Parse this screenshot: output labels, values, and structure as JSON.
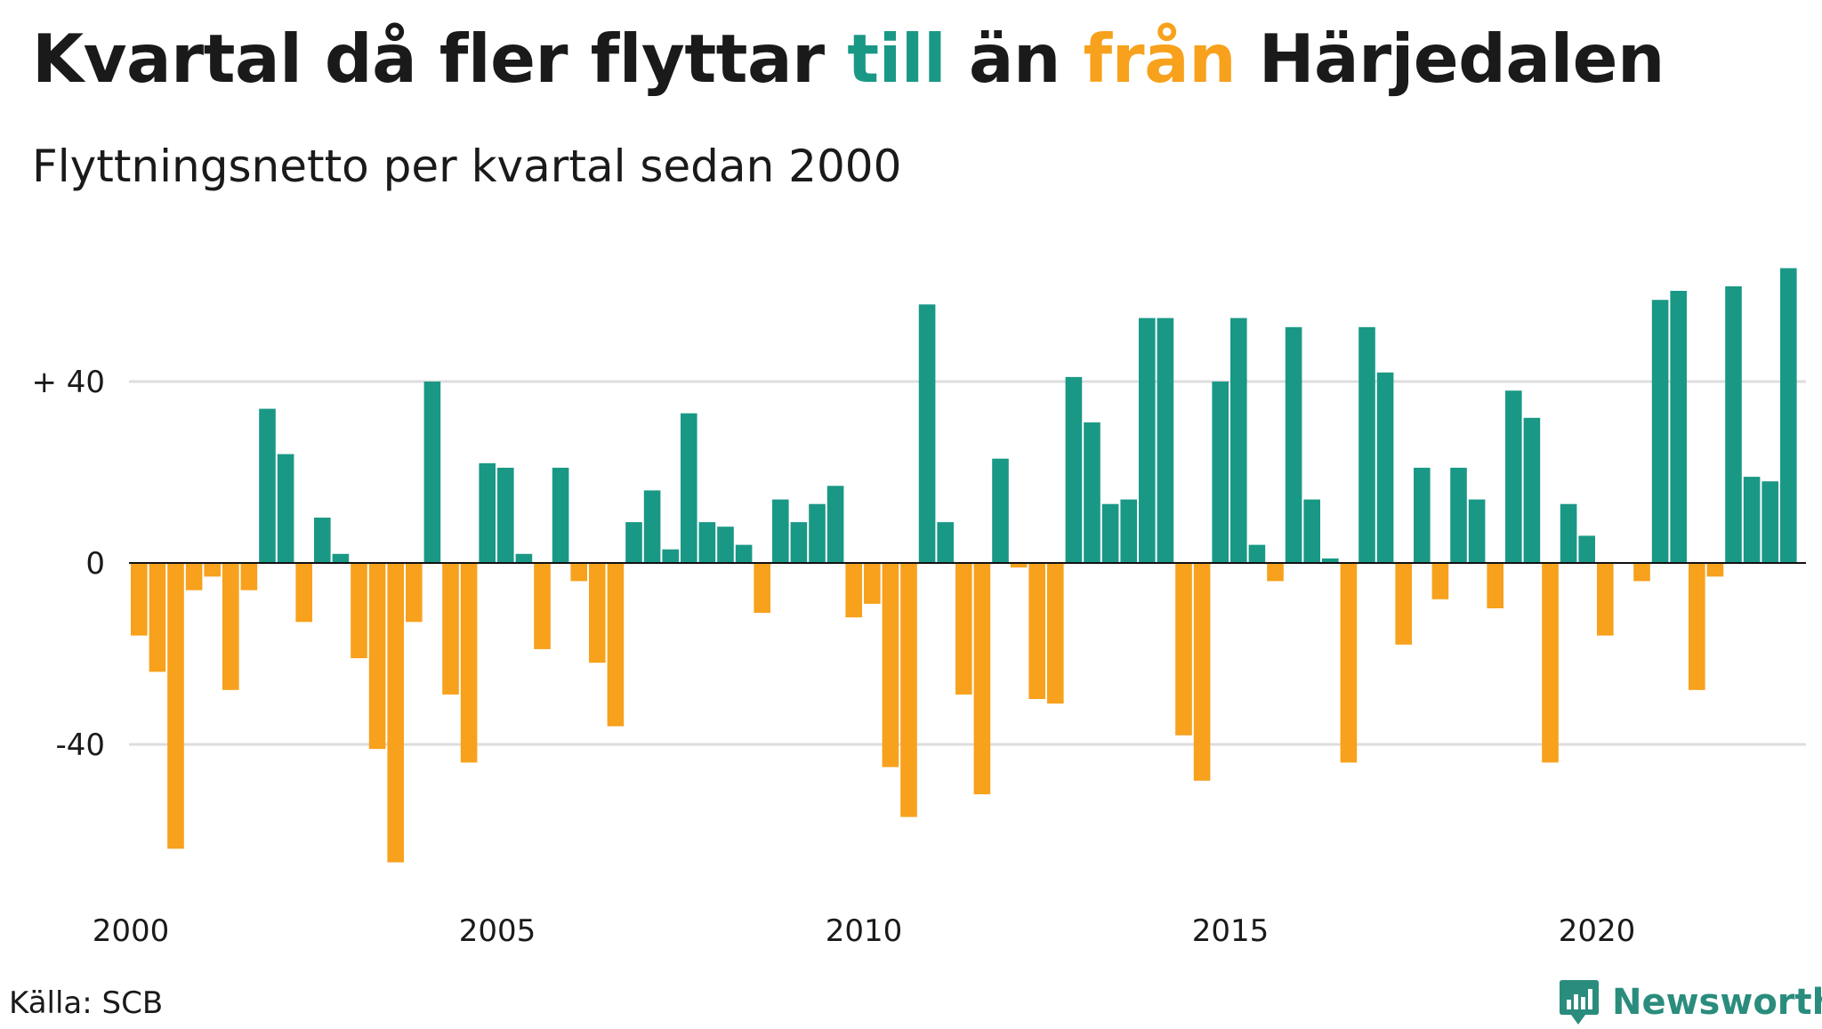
{
  "title": {
    "part1": "Kvartal då fler flyttar ",
    "part2": "till",
    "part3": " än ",
    "part4": "från",
    "part5": " Härjedalen"
  },
  "subtitle": "Flyttningsnetto per kvartal sedan 2000",
  "source": "Källa: SCB",
  "brand": "Newsworthy",
  "colors": {
    "positive": "#1a9886",
    "negative": "#f7a11c",
    "grid": "#dddddd",
    "text": "#1a1a1a"
  },
  "chart_data": {
    "type": "bar",
    "title": "Kvartal då fler flyttar till än från Härjedalen",
    "subtitle": "Flyttningsnetto per kvartal sedan 2000",
    "xlabel": "",
    "ylabel": "",
    "ylim": [
      -72,
      66
    ],
    "yticks": [
      {
        "value": 40,
        "label": "+ 40"
      },
      {
        "value": 0,
        "label": "0"
      },
      {
        "value": -40,
        "label": "-40"
      }
    ],
    "xticks": [
      {
        "index": 0,
        "label": "2000"
      },
      {
        "index": 20,
        "label": "2005"
      },
      {
        "index": 40,
        "label": "2010"
      },
      {
        "index": 60,
        "label": "2015"
      },
      {
        "index": 80,
        "label": "2020"
      }
    ],
    "start": "2000 Q1",
    "values": [
      -16,
      -24,
      -63,
      -6,
      -3,
      -28,
      -6,
      34,
      24,
      -13,
      10,
      2,
      -21,
      -41,
      -66,
      -13,
      40,
      -29,
      -44,
      22,
      21,
      2,
      -19,
      21,
      -4,
      -22,
      -36,
      9,
      16,
      3,
      33,
      9,
      8,
      4,
      -11,
      14,
      9,
      13,
      17,
      -12,
      -9,
      -45,
      -56,
      57,
      9,
      -29,
      -51,
      23,
      -1,
      -30,
      -31,
      41,
      31,
      13,
      14,
      54,
      54,
      -38,
      -48,
      40,
      54,
      4,
      -4,
      52,
      14,
      1,
      -44,
      52,
      42,
      -18,
      21,
      -8,
      21,
      14,
      -10,
      38,
      32,
      -44,
      13,
      6,
      -16,
      0,
      -4,
      58,
      60,
      -28,
      -3,
      61,
      19,
      18,
      65
    ]
  }
}
